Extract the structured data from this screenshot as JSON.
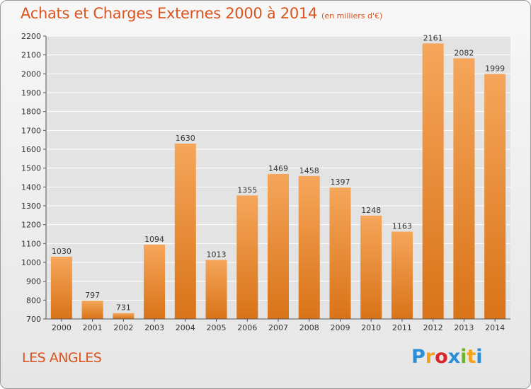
{
  "title": "Achats et Charges Externes 2000 à 2014",
  "subtitle": "(en milliers d'€)",
  "location": "LES ANGLES",
  "logo": {
    "letters": [
      "P",
      "r",
      "o",
      "x",
      "i",
      "t",
      "i"
    ],
    "colors": [
      "#2a8fd6",
      "#f2a21b",
      "#d9262a",
      "#2a8fd6",
      "#6fb52c",
      "#f2a21b",
      "#2a8fd6"
    ]
  },
  "colors": {
    "accent": "#d9541f",
    "bar_light": "#f5a65a",
    "bar_dark": "#d97318"
  },
  "chart_data": {
    "type": "bar",
    "title": "Achats et Charges Externes 2000 à 2014",
    "subtitle": "(en milliers d'€)",
    "categories": [
      "2000",
      "2001",
      "2002",
      "2003",
      "2004",
      "2005",
      "2006",
      "2007",
      "2008",
      "2009",
      "2010",
      "2011",
      "2012",
      "2013",
      "2014"
    ],
    "values": [
      1030,
      797,
      731,
      1094,
      1630,
      1013,
      1355,
      1469,
      1458,
      1397,
      1248,
      1163,
      2161,
      2082,
      1999
    ],
    "ylim": [
      700,
      2200
    ],
    "yticks": [
      700,
      800,
      900,
      1000,
      1100,
      1200,
      1300,
      1400,
      1500,
      1600,
      1700,
      1800,
      1900,
      2000,
      2100,
      2200
    ],
    "grid": true,
    "xlabel": "",
    "ylabel": ""
  }
}
